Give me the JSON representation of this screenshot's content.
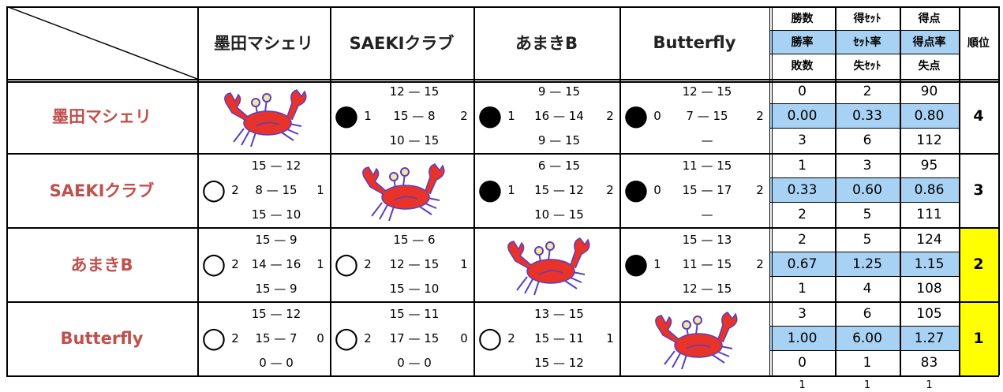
{
  "header": {
    "teams": [
      "墨田マシェリ",
      "SAEKIクラブ",
      "あまきB",
      "Butterfly"
    ],
    "stats": [
      [
        "勝数",
        "得ｾｯﾄ",
        "得点"
      ],
      [
        "勝率",
        "ｾｯﾄ率",
        "得点率"
      ],
      [
        "敗数",
        "失ｾｯﾄ",
        "失点"
      ]
    ],
    "rank": "順位"
  },
  "rows": [
    {
      "name": "墨田マシェリ",
      "matches": [
        null,
        {
          "result": "●",
          "sets_won": "1",
          "sets_lost": "2",
          "scores": [
            "12 — 15",
            "15 — 8",
            "10 — 15"
          ]
        },
        {
          "result": "●",
          "sets_won": "1",
          "sets_lost": "2",
          "scores": [
            "9 — 15",
            "16 — 14",
            "9 — 15"
          ]
        },
        {
          "result": "●",
          "sets_won": "0",
          "sets_lost": "2",
          "scores": [
            "12 — 15",
            "7 — 15",
            "—"
          ]
        }
      ],
      "stats": [
        [
          "0",
          "2",
          "90"
        ],
        [
          "0.00",
          "0.33",
          "0.80"
        ],
        [
          "3",
          "6",
          "112"
        ]
      ],
      "rank": "4"
    },
    {
      "name": "SAEKIクラブ",
      "matches": [
        {
          "result": "○",
          "sets_won": "2",
          "sets_lost": "1",
          "scores": [
            "15 — 12",
            "8 — 15",
            "15 — 10"
          ]
        },
        null,
        {
          "result": "●",
          "sets_won": "1",
          "sets_lost": "2",
          "scores": [
            "6 — 15",
            "15 — 12",
            "10 — 15"
          ]
        },
        {
          "result": "●",
          "sets_won": "0",
          "sets_lost": "2",
          "scores": [
            "11 — 15",
            "15 — 17",
            "—"
          ]
        }
      ],
      "stats": [
        [
          "1",
          "3",
          "95"
        ],
        [
          "0.33",
          "0.60",
          "0.86"
        ],
        [
          "2",
          "5",
          "111"
        ]
      ],
      "rank": "3"
    },
    {
      "name": "あまきB",
      "matches": [
        {
          "result": "○",
          "sets_won": "2",
          "sets_lost": "1",
          "scores": [
            "15 — 9",
            "14 — 16",
            "15 — 9"
          ]
        },
        {
          "result": "○",
          "sets_won": "2",
          "sets_lost": "1",
          "scores": [
            "15 — 6",
            "12 — 15",
            "15 — 10"
          ]
        },
        null,
        {
          "result": "●",
          "sets_won": "1",
          "sets_lost": "2",
          "scores": [
            "15 — 13",
            "11 — 15",
            "12 — 15"
          ]
        }
      ],
      "stats": [
        [
          "2",
          "5",
          "124"
        ],
        [
          "0.67",
          "1.25",
          "1.15"
        ],
        [
          "1",
          "4",
          "108"
        ]
      ],
      "rank": "2",
      "rank_color": "#ffff00"
    },
    {
      "name": "Butterfly",
      "matches": [
        {
          "result": "○",
          "sets_won": "2",
          "sets_lost": "0",
          "scores": [
            "15 — 12",
            "15 — 7",
            "0 — 0"
          ]
        },
        {
          "result": "○",
          "sets_won": "2",
          "sets_lost": "0",
          "scores": [
            "15 — 11",
            "17 — 15",
            "0 — 0"
          ]
        },
        {
          "result": "○",
          "sets_won": "2",
          "sets_lost": "1",
          "scores": [
            "13 — 15",
            "15 — 11",
            "15 — 12"
          ]
        },
        null
      ],
      "stats": [
        [
          "3",
          "6",
          "105"
        ],
        [
          "1.00",
          "6.00",
          "1.27"
        ],
        [
          "0",
          "1",
          "83"
        ]
      ],
      "rank": "1",
      "rank_color": "#ffff00"
    }
  ],
  "footer": [
    "1",
    "1",
    "1"
  ]
}
